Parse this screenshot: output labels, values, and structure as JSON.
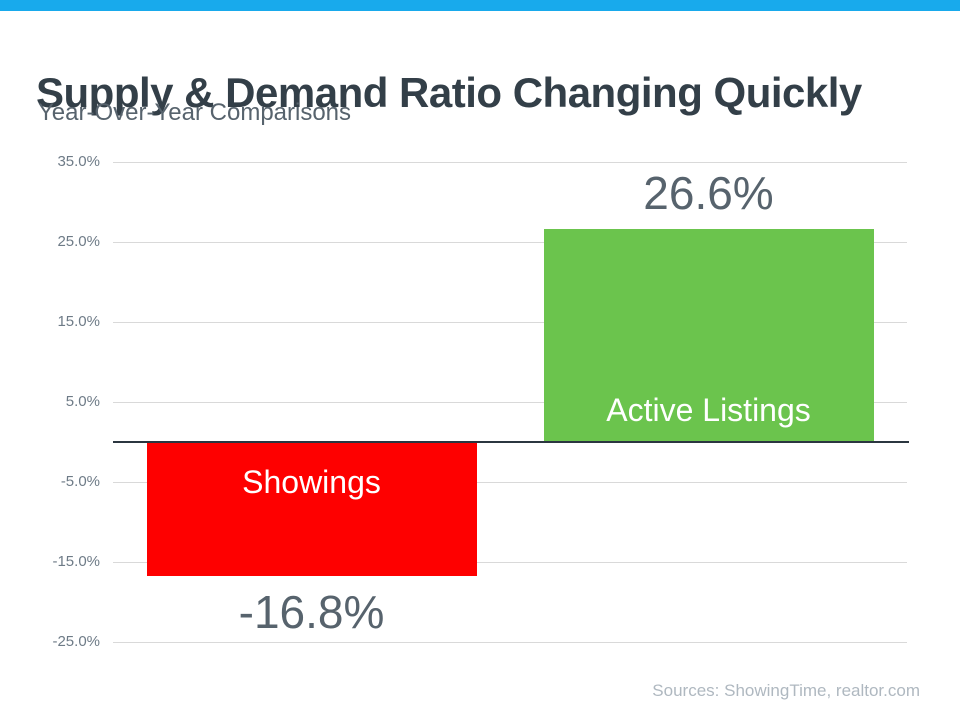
{
  "header": {
    "title": "Supply & Demand Ratio Changing Quickly",
    "subtitle": "Year-Over-Year Comparisons"
  },
  "footer": {
    "source": "Sources: ShowingTime, realtor.com"
  },
  "colors": {
    "accent_top_bar": "#18AAEC",
    "title_text": "#333F48",
    "subtitle_text": "#57636D",
    "tick_label_text": "#6E7B87",
    "value_label_text": "#57636D",
    "gridline": "#D9D9D9",
    "zero_axis_line": "#2B3640",
    "source_text": "#AFB8C0",
    "bar_negative": "#FE0000",
    "bar_positive": "#6BC44D"
  },
  "chart_data": {
    "type": "bar",
    "title": "Supply & Demand Ratio Changing Quickly",
    "subtitle": "Year-Over-Year Comparisons",
    "categories": [
      "Showings",
      "Active Listings"
    ],
    "values": [
      -16.8,
      26.6
    ],
    "value_labels": [
      "-16.8%",
      "26.6%"
    ],
    "bar_colors": [
      "#FE0000",
      "#6BC44D"
    ],
    "xlabel": "",
    "ylabel": "",
    "ylim": [
      -25,
      35
    ],
    "yticks": [
      35,
      25,
      15,
      5,
      -5,
      -15,
      -25
    ],
    "ytick_labels": [
      "35.0%",
      "25.0%",
      "15.0%",
      "5.0%",
      "-5.0%",
      "-15.0%",
      "-25.0%"
    ],
    "grid": true,
    "legend": false,
    "label_style": "category names in white inside bars, value labels outside bar ends",
    "source": "Sources: ShowingTime, realtor.com"
  }
}
